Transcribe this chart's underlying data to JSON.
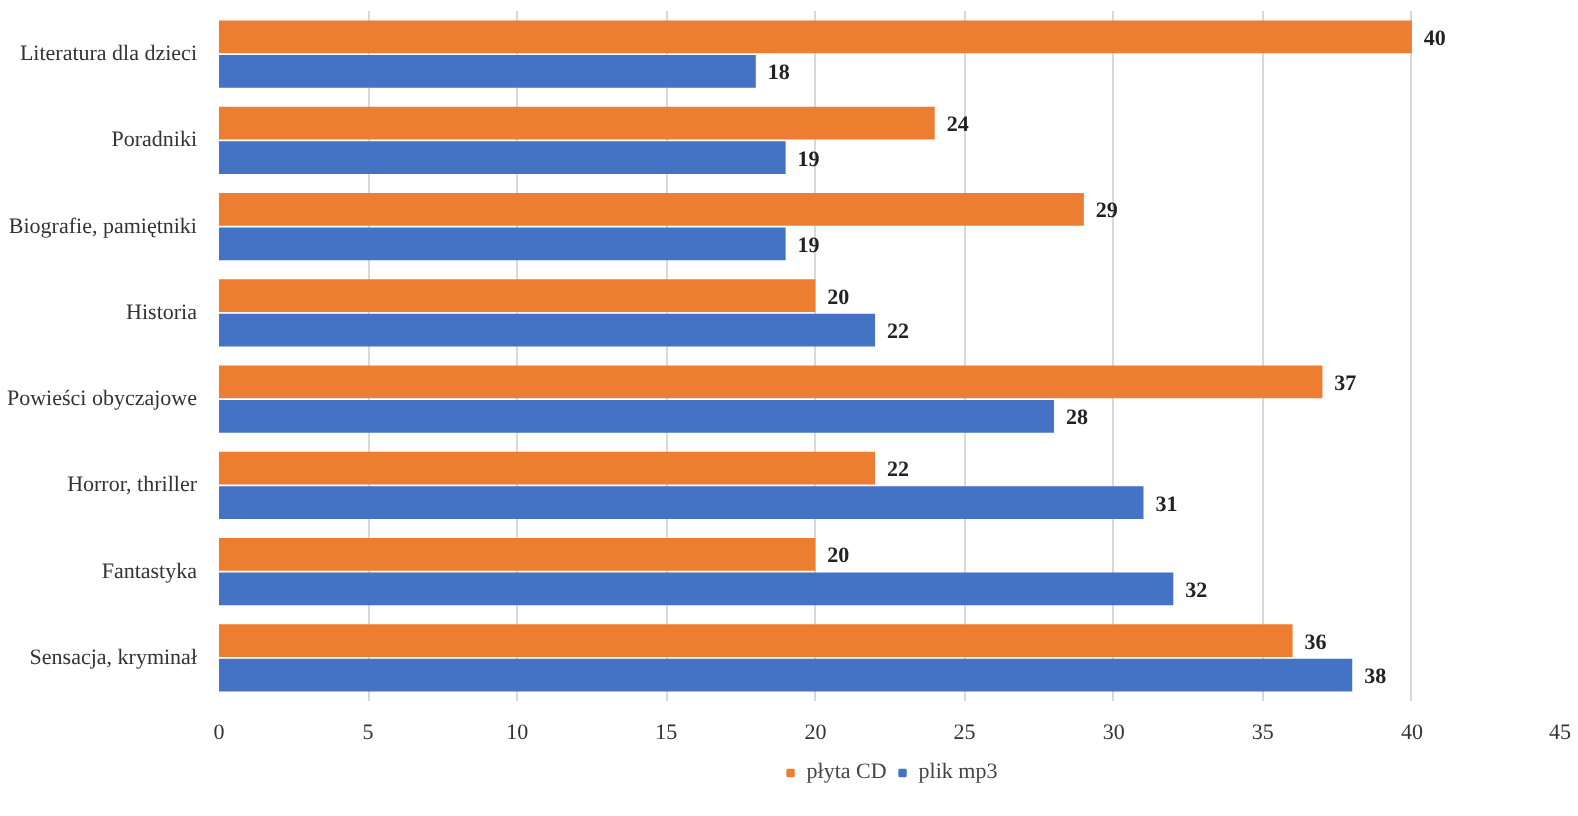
{
  "chart_data": {
    "type": "bar",
    "orientation": "horizontal",
    "categories": [
      "Literatura dla dzieci",
      "Poradniki",
      "Biografie, pamiętniki",
      "Historia",
      "Powieści obyczajowe",
      "Horror, thriller",
      "Fantastyka",
      "Sensacja, kryminał"
    ],
    "series": [
      {
        "name": "płyta CD",
        "color": "#ed7d31",
        "values": [
          40,
          24,
          29,
          20,
          37,
          22,
          20,
          36
        ]
      },
      {
        "name": "plik mp3",
        "color": "#4472c4",
        "values": [
          18,
          19,
          19,
          22,
          28,
          31,
          32,
          38
        ]
      }
    ],
    "xlim": [
      0,
      45
    ],
    "xticks": [
      0,
      5,
      10,
      15,
      20,
      25,
      30,
      35,
      40,
      45
    ],
    "grid": "x",
    "legend": "bottom",
    "data_labels": true
  }
}
